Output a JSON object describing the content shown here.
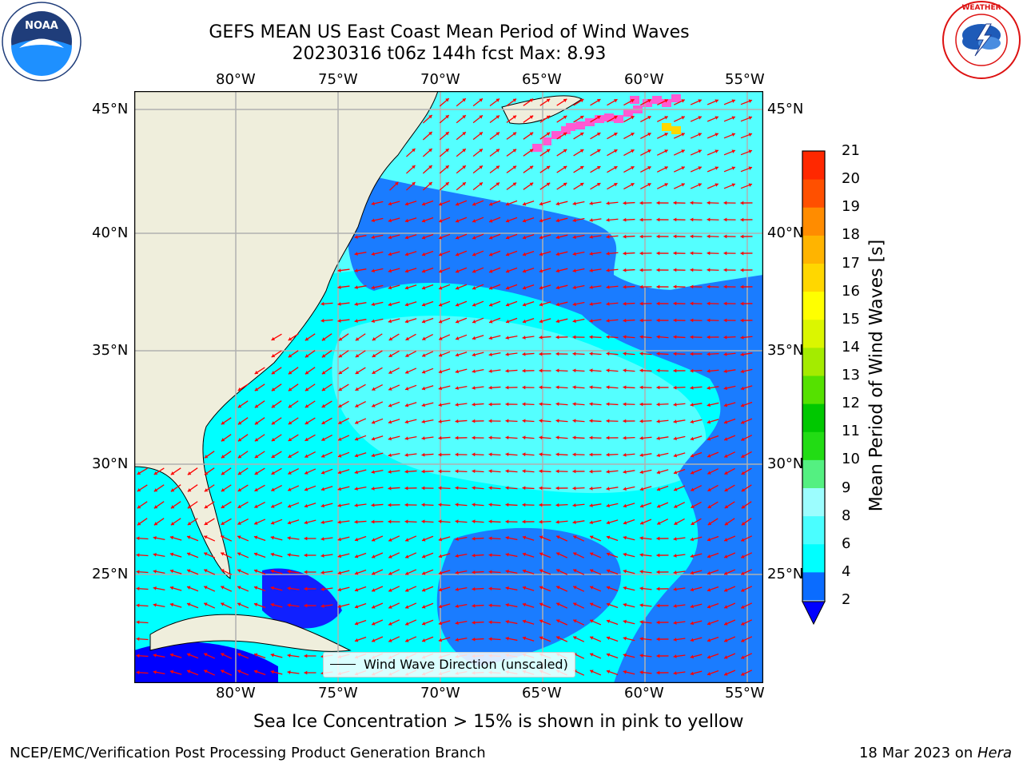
{
  "header": {
    "title_line1": "GEFS MEAN US East Coast Mean Period of Wind Waves",
    "title_line2": "20230316 t06z 144h fcst   Max: 8.93"
  },
  "logos": {
    "left_icon": "noaa-logo",
    "left_text": "NOAA",
    "left_ring_text": "NATIONAL OCEANIC AND ATMOSPHERIC ADMINISTRATION · U.S. DEPARTMENT OF COMMERCE",
    "right_icon": "nws-logo",
    "right_ring_text": "NATIONAL WEATHER SERVICE"
  },
  "map": {
    "lon_labels": [
      "80°W",
      "75°W",
      "70°W",
      "65°W",
      "60°W",
      "55°W"
    ],
    "lat_labels": [
      "45°N",
      "40°N",
      "35°N",
      "30°N",
      "25°N"
    ],
    "legend_label": "Wind Wave Direction (unscaled)",
    "colors": {
      "land": "#efeedc",
      "level_2_4": "#1a7cff",
      "level_4_6": "#00ffff",
      "level_6_8": "#54ffff",
      "deep_blue": "#0000ff",
      "arrow": "#ff0000",
      "ice": "#ff5ad2"
    }
  },
  "colorbar": {
    "label": "Mean Period of Wind Waves [s]",
    "levels": [
      "2",
      "4",
      "6",
      "8",
      "9",
      "10",
      "11",
      "12",
      "13",
      "14",
      "15",
      "16",
      "17",
      "18",
      "19",
      "20",
      "21"
    ],
    "colors": [
      "#0a6cff",
      "#00ffff",
      "#4afeff",
      "#9cfdfe",
      "#54f081",
      "#22dc14",
      "#00c800",
      "#55e100",
      "#a4eb00",
      "#dbf600",
      "#ffff00",
      "#ffd700",
      "#ffb400",
      "#ff8c00",
      "#ff5000",
      "#ff2800",
      "#ff0000"
    ],
    "extend_color": "#0000ff"
  },
  "footer": {
    "ice_note": "Sea Ice Concentration > 15% is shown in pink to yellow",
    "left": "NCEP/EMC/Verification Post Processing Product Generation Branch",
    "right_date": "18 Mar 2023 on ",
    "right_machine": "Hera"
  }
}
